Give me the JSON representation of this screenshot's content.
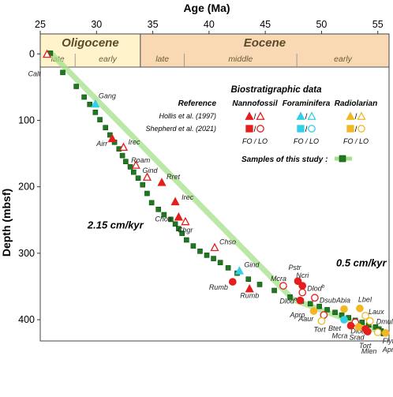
{
  "chart_data": {
    "type": "scatter",
    "xlabel": "Age (Ma)",
    "ylabel": "Depth (mbsf)",
    "xlim": [
      25,
      56
    ],
    "ylim": [
      -30,
      432
    ],
    "x_ticks": [
      25,
      30,
      35,
      40,
      45,
      50,
      55
    ],
    "y_ticks": [
      0,
      100,
      200,
      300,
      400
    ],
    "y_axis_inverted": true,
    "grid": false,
    "epochs": [
      {
        "name": "Oligocene",
        "x_start": 25,
        "x_end": 33.9,
        "color": "#fff3cc",
        "subdivisions": [
          {
            "name": "late",
            "x_start": 25,
            "x_end": 28.1
          },
          {
            "name": "early",
            "x_start": 28.1,
            "x_end": 33.9
          }
        ]
      },
      {
        "name": "Eocene",
        "x_start": 33.9,
        "x_end": 56,
        "color": "#f8d9b4",
        "subdivisions": [
          {
            "name": "late",
            "x_start": 33.9,
            "x_end": 37.8
          },
          {
            "name": "middle",
            "x_start": 37.8,
            "x_end": 47.8
          },
          {
            "name": "early",
            "x_start": 47.8,
            "x_end": 56
          }
        ]
      }
    ],
    "sedimentation_rates": [
      {
        "label": "2.15 cm/kyr",
        "at": [
          29.2,
          263
        ]
      },
      {
        "label": "0.5 cm/kyr",
        "at": [
          51.3,
          320
        ]
      }
    ],
    "age_model": {
      "x": [
        26,
        47.5,
        55.5
      ],
      "y": [
        0,
        370,
        420
      ]
    },
    "samples": {
      "name": "Samples of this study :",
      "x": [
        25.9,
        27.0,
        28.2,
        28.9,
        29.4,
        29.9,
        30.3,
        30.8,
        31.2,
        31.6,
        32.0,
        32.3,
        32.6,
        33.0,
        33.3,
        33.7,
        34.1,
        34.5,
        34.9,
        35.5,
        36.0,
        36.6,
        37.0,
        37.3,
        37.6,
        38.0,
        38.6,
        39.2,
        39.8,
        40.4,
        41.0,
        41.7,
        42.5,
        43.5,
        44.5,
        45.8,
        47.2,
        48.2,
        49.0,
        49.8,
        50.5,
        51.2,
        51.8,
        52.4,
        53.0,
        53.6,
        54.2,
        54.8,
        55.1,
        55.3,
        55.5
      ],
      "y": [
        -1,
        28,
        49,
        65,
        76,
        88,
        99,
        111,
        122,
        133,
        143,
        153,
        162,
        170,
        178,
        187,
        197,
        210,
        224,
        234,
        242,
        249,
        256,
        263,
        270,
        280,
        289,
        297,
        303,
        308,
        314,
        322,
        330,
        339,
        347,
        356,
        366,
        372,
        376,
        380,
        385,
        389,
        393,
        397,
        401,
        404,
        408,
        411,
        414,
        417,
        421
      ]
    },
    "biostratigraphic_data": {
      "title": "Biostratigraphic data",
      "reference_label": "Reference",
      "groups": [
        {
          "name": "Nannofossil",
          "color": "#e41d1d"
        },
        {
          "name": "Foraminifera",
          "color": "#33cfe6"
        },
        {
          "name": "Radiolarian",
          "color": "#f2b824"
        }
      ],
      "references": [
        {
          "name": "Hollis et al. (1997)",
          "marker": "triangle"
        },
        {
          "name": "Shepherd et al. (2021)",
          "marker": "square-circle"
        }
      ],
      "fo_lo_label": "FO / LO",
      "events": [
        {
          "label": "Calt",
          "x": 25.6,
          "y": 0,
          "group": "Nannofossil",
          "ref": "Hollis et al. (1997)",
          "type": "LO"
        },
        {
          "label": "Gang",
          "x": 29.9,
          "y": 75,
          "group": "Foraminifera",
          "ref": "Hollis et al. (1997)",
          "type": "FO"
        },
        {
          "label": "Airr",
          "x": 31.4,
          "y": 127,
          "group": "Nannofossil",
          "ref": "Hollis et al. (1997)",
          "type": "FO"
        },
        {
          "label": "Irec",
          "x": 32.4,
          "y": 140,
          "group": "Nannofossil",
          "ref": "Hollis et al. (1997)",
          "type": "LO"
        },
        {
          "label": "Roam",
          "x": 33.5,
          "y": 167,
          "group": "Nannofossil",
          "ref": "Hollis et al. (1997)",
          "type": "LO"
        },
        {
          "label": "Gind",
          "x": 34.5,
          "y": 185,
          "group": "Nannofossil",
          "ref": "Hollis et al. (1997)",
          "type": "LO"
        },
        {
          "label": "Rret",
          "x": 35.8,
          "y": 193,
          "group": "Nannofossil",
          "ref": "Hollis et al. (1997)",
          "type": "FO"
        },
        {
          "label": "Irec",
          "x": 37.0,
          "y": 222,
          "group": "Nannofossil",
          "ref": "Hollis et al. (1997)",
          "type": "FO"
        },
        {
          "label": "Choa",
          "x": 37.3,
          "y": 245,
          "group": "Nannofossil",
          "ref": "Hollis et al. (1997)",
          "type": "FO"
        },
        {
          "label": "Chgr",
          "x": 37.9,
          "y": 252,
          "group": "Nannofossil",
          "ref": "Hollis et al. (1997)",
          "type": "LO"
        },
        {
          "label": "Chso",
          "x": 40.5,
          "y": 291,
          "group": "Nannofossil",
          "ref": "Hollis et al. (1997)",
          "type": "LO"
        },
        {
          "label": "Gind",
          "x": 42.7,
          "y": 326,
          "group": "Foraminifera",
          "ref": "Hollis et al. (1997)",
          "type": "FO"
        },
        {
          "label": "Rumb",
          "x": 42.1,
          "y": 343,
          "group": "Nannofossil",
          "ref": "Shepherd et al. (2021)",
          "type": "FO"
        },
        {
          "label": "Rumb",
          "x": 43.6,
          "y": 353,
          "group": "Nannofossil",
          "ref": "Hollis et al. (1997)",
          "type": "FO"
        },
        {
          "label": "Mcra",
          "x": 46.6,
          "y": 349,
          "group": "Nannofossil",
          "ref": "Shepherd et al. (2021)",
          "type": "LO"
        },
        {
          "label": "Pstr",
          "x": 47.9,
          "y": 342,
          "group": "Nannofossil",
          "ref": "Shepherd et al. (2021)",
          "type": "FO"
        },
        {
          "label": "Ncri",
          "x": 48.3,
          "y": 349,
          "group": "Nannofossil",
          "ref": "Shepherd et al. (2021)",
          "type": "FO"
        },
        {
          "label": "Dlod",
          "x": 48.3,
          "y": 359,
          "group": "Nannofossil",
          "ref": "Shepherd et al. (2021)",
          "type": "LO",
          "superscript": "b"
        },
        {
          "label": "Dsub",
          "x": 49.4,
          "y": 367,
          "group": "Nannofossil",
          "ref": "Shepherd et al. (2021)",
          "type": "LO"
        },
        {
          "label": "Dlod",
          "x": 48.1,
          "y": 371,
          "group": "Nannofossil",
          "ref": "Shepherd et al. (2021)",
          "type": "FO",
          "superscript": "a"
        },
        {
          "label": "Apro",
          "x": 49.3,
          "y": 387,
          "group": "Radiolarian",
          "ref": "Shepherd et al. (2021)",
          "type": "FO"
        },
        {
          "label": "Aaur",
          "x": 50.2,
          "y": 393,
          "group": "Nannofossil",
          "ref": "Shepherd et al. (2021)",
          "type": "LO"
        },
        {
          "label": "Tort",
          "x": 50.0,
          "y": 402,
          "group": "Radiolarian",
          "ref": "Shepherd et al. (2021)",
          "type": "LO"
        },
        {
          "label": "Abia",
          "x": 52.0,
          "y": 384,
          "group": "Radiolarian",
          "ref": "Shepherd et al. (2021)",
          "type": "FO"
        },
        {
          "label": "Lbel",
          "x": 53.4,
          "y": 383,
          "group": "Radiolarian",
          "ref": "Shepherd et al. (2021)",
          "type": "FO"
        },
        {
          "label": "Laux",
          "x": 53.9,
          "y": 394,
          "group": "Radiolarian",
          "ref": "Shepherd et al. (2021)",
          "type": "LO"
        },
        {
          "label": "Btet",
          "x": 52.0,
          "y": 400,
          "group": "Foraminifera",
          "ref": "Shepherd et al. (2021)",
          "type": "FO"
        },
        {
          "label": "Dlod",
          "x": 53.0,
          "y": 404,
          "group": "Nannofossil",
          "ref": "Shepherd et al. (2021)",
          "type": "LO"
        },
        {
          "label": "Dmul",
          "x": 54.3,
          "y": 402,
          "group": "Radiolarian",
          "ref": "Shepherd et al. (2021)",
          "type": "LO"
        },
        {
          "label": "Mcra",
          "x": 52.6,
          "y": 409,
          "group": "Nannofossil",
          "ref": "Shepherd et al. (2021)",
          "type": "FO"
        },
        {
          "label": "Srad",
          "x": 53.3,
          "y": 411,
          "group": "Radiolarian",
          "ref": "Shepherd et al. (2021)",
          "type": "FO"
        },
        {
          "label": "Tort",
          "x": 53.9,
          "y": 414,
          "group": "Nannofossil",
          "ref": "Shepherd et al. (2021)",
          "type": "FO"
        },
        {
          "label": "Mlen",
          "x": 54.1,
          "y": 418,
          "group": "Nannofossil",
          "ref": "Shepherd et al. (2021)",
          "type": "FO"
        },
        {
          "label": "Flym",
          "x": 55.0,
          "y": 419,
          "group": "Radiolarian",
          "ref": "Shepherd et al. (2021)",
          "type": "LO"
        },
        {
          "label": "Apro",
          "x": 55.7,
          "y": 420,
          "group": "Radiolarian",
          "ref": "Shepherd et al. (2021)",
          "type": "FO"
        }
      ]
    }
  }
}
